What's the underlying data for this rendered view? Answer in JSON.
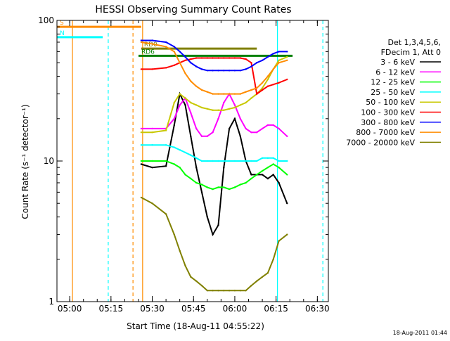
{
  "chart_data": {
    "type": "line",
    "title": "HESSI Observing Summary Count Rates",
    "xlabel": "Start Time (18-Aug-11 04:55:22)",
    "ylabel": "Count Rate (s⁻¹ detector⁻¹)",
    "yscale": "log",
    "ylim": [
      1,
      100
    ],
    "xlim": [
      "04:55:22",
      "06:34:00"
    ],
    "grid": false,
    "legend_position": "right",
    "x_ticks": [
      "05:00",
      "05:15",
      "05:30",
      "05:45",
      "06:00",
      "06:15",
      "06:30"
    ],
    "y_ticks": [
      "1",
      "10",
      "100"
    ],
    "legend_header": [
      "Det 1,3,4,5,6,",
      "FDecim 1, Att 0"
    ],
    "series": [
      {
        "name": "3 - 6 keV",
        "color": "#000000",
        "x": [
          "05:26",
          "05:30",
          "05:35",
          "05:38",
          "05:40",
          "05:42",
          "05:44",
          "05:46",
          "05:48",
          "05:50",
          "05:52",
          "05:54",
          "05:56",
          "05:58",
          "06:00",
          "06:02",
          "06:04",
          "06:06",
          "06:08",
          "06:10",
          "06:12",
          "06:14",
          "06:16",
          "06:19"
        ],
        "values": [
          9.5,
          9.0,
          9.2,
          18,
          30,
          25,
          15,
          9,
          6,
          4,
          3,
          3.5,
          9,
          17,
          20,
          15,
          10,
          8,
          8,
          8,
          7.5,
          8.0,
          7,
          5
        ]
      },
      {
        "name": "6 - 12 keV",
        "color": "#ff00ff",
        "x": [
          "05:26",
          "05:30",
          "05:35",
          "05:38",
          "05:40",
          "05:42",
          "05:44",
          "05:46",
          "05:48",
          "05:50",
          "05:52",
          "05:54",
          "05:56",
          "05:58",
          "06:00",
          "06:02",
          "06:04",
          "06:06",
          "06:08",
          "06:10",
          "06:12",
          "06:14",
          "06:16",
          "06:19"
        ],
        "values": [
          17,
          17,
          17,
          20,
          25,
          28,
          22,
          17,
          15,
          15,
          16,
          20,
          26,
          30,
          25,
          20,
          17,
          16,
          16,
          17,
          18,
          18,
          17,
          15
        ]
      },
      {
        "name": "12 - 25 keV",
        "color": "#00ff00",
        "x": [
          "05:26",
          "05:30",
          "05:35",
          "05:38",
          "05:40",
          "05:42",
          "05:44",
          "05:46",
          "05:48",
          "05:50",
          "05:52",
          "05:54",
          "05:56",
          "05:58",
          "06:00",
          "06:02",
          "06:04",
          "06:06",
          "06:08",
          "06:10",
          "06:12",
          "06:14",
          "06:16",
          "06:19"
        ],
        "values": [
          10,
          10,
          10,
          9.5,
          9,
          8,
          7.5,
          7,
          6.8,
          6.5,
          6.3,
          6.5,
          6.5,
          6.3,
          6.5,
          6.8,
          7,
          7.5,
          8,
          8.5,
          9,
          9.5,
          9,
          8
        ]
      },
      {
        "name": "25 - 50 keV",
        "color": "#00ffff",
        "x": [
          "05:26",
          "05:30",
          "05:35",
          "05:38",
          "05:40",
          "05:42",
          "05:44",
          "05:46",
          "05:48",
          "05:50",
          "05:52",
          "05:54",
          "05:56",
          "05:58",
          "06:00",
          "06:02",
          "06:04",
          "06:06",
          "06:08",
          "06:10",
          "06:12",
          "06:14",
          "06:16",
          "06:19"
        ],
        "values": [
          13,
          13,
          13,
          12.5,
          12,
          11.5,
          11,
          10.5,
          10,
          10,
          10,
          10,
          10,
          10,
          10,
          10,
          10,
          10,
          10,
          10.5,
          10.5,
          10.5,
          10,
          10
        ]
      },
      {
        "name": "50 - 100 keV",
        "color": "#c8c800",
        "x": [
          "05:26",
          "05:30",
          "05:35",
          "05:38",
          "05:40",
          "05:42",
          "05:44",
          "05:46",
          "05:48",
          "05:50",
          "05:52",
          "05:54",
          "05:56",
          "05:58",
          "06:00",
          "06:02",
          "06:04",
          "06:06",
          "06:08",
          "06:10",
          "06:12",
          "06:14",
          "06:16",
          "06:19"
        ],
        "values": [
          16,
          16,
          16.5,
          26,
          30,
          28,
          26,
          25,
          24,
          23.5,
          23,
          23,
          23,
          23.5,
          24,
          25,
          26,
          28,
          30,
          33,
          38,
          45,
          52,
          55
        ]
      },
      {
        "name": "100 - 300 keV",
        "color": "#ff0000",
        "x": [
          "05:26",
          "05:30",
          "05:35",
          "05:38",
          "05:40",
          "05:42",
          "05:44",
          "05:46",
          "05:48",
          "05:50",
          "05:52",
          "05:54",
          "05:56",
          "05:58",
          "06:00",
          "06:02",
          "06:04",
          "06:06",
          "06:08",
          "06:10",
          "06:12",
          "06:14",
          "06:16",
          "06:19"
        ],
        "values": [
          45,
          45,
          46,
          48,
          50,
          52,
          53,
          54,
          54,
          54,
          54,
          54,
          54,
          54,
          54,
          54,
          53,
          50,
          30,
          32,
          34,
          35,
          36,
          38
        ]
      },
      {
        "name": "300 - 800 keV",
        "color": "#0000ff",
        "x": [
          "05:26",
          "05:30",
          "05:35",
          "05:38",
          "05:40",
          "05:42",
          "05:44",
          "05:46",
          "05:48",
          "05:50",
          "05:52",
          "05:54",
          "05:56",
          "05:58",
          "06:00",
          "06:02",
          "06:04",
          "06:06",
          "06:08",
          "06:10",
          "06:12",
          "06:14",
          "06:16",
          "06:19"
        ],
        "values": [
          72,
          72,
          70,
          65,
          60,
          55,
          50,
          47,
          45,
          44,
          44,
          44,
          44,
          44,
          44,
          44,
          45,
          47,
          50,
          52,
          55,
          58,
          60,
          60
        ]
      },
      {
        "name": "800 - 7000 keV",
        "color": "#ff8c00",
        "x": [
          "05:26",
          "05:30",
          "05:35",
          "05:38",
          "05:40",
          "05:42",
          "05:44",
          "05:46",
          "05:48",
          "05:50",
          "05:52",
          "05:54",
          "05:56",
          "05:58",
          "06:00",
          "06:02",
          "06:04",
          "06:06",
          "06:08",
          "06:10",
          "06:12",
          "06:14",
          "06:16",
          "06:19"
        ],
        "values": [
          70,
          68,
          65,
          60,
          50,
          42,
          37,
          34,
          32,
          31,
          30,
          30,
          30,
          30,
          30,
          30,
          31,
          32,
          33,
          36,
          40,
          45,
          50,
          52
        ]
      },
      {
        "name": "7000 - 20000 keV",
        "color": "#808000",
        "x": [
          "05:26",
          "05:30",
          "05:35",
          "05:38",
          "05:40",
          "05:42",
          "05:44",
          "05:46",
          "05:48",
          "05:50",
          "05:52",
          "05:54",
          "05:56",
          "05:58",
          "06:00",
          "06:02",
          "06:04",
          "06:06",
          "06:08",
          "06:10",
          "06:12",
          "06:14",
          "06:16",
          "06:19"
        ],
        "values": [
          5.5,
          5,
          4.2,
          3,
          2.3,
          1.8,
          1.5,
          1.4,
          1.3,
          1.2,
          1.2,
          1.2,
          1.2,
          1.2,
          1.2,
          1.2,
          1.2,
          1.3,
          1.4,
          1.5,
          1.6,
          2,
          2.7,
          3
        ]
      }
    ],
    "annotations": [
      {
        "text": "S",
        "color": "#ff8c00",
        "x_start": "04:55:22",
        "x_end": "05:26:00",
        "level": 90
      },
      {
        "text": "N",
        "color": "#00ffff",
        "x_start": "04:55:22",
        "x_end": "05:12:00",
        "level": 76
      },
      {
        "text": "RD0",
        "color": "#808000",
        "x_start": "05:26:00",
        "x_end": "06:08:00",
        "level": 63
      },
      {
        "text": "RD6",
        "color": "#008000",
        "x_start": "05:25:00",
        "x_end": "06:21:00",
        "level": 56
      }
    ],
    "vertical_markers": [
      {
        "x": "05:01:00",
        "color": "#ff8c00",
        "style": "solid"
      },
      {
        "x": "05:14:00",
        "color": "#00ffff",
        "style": "dashed"
      },
      {
        "x": "05:23:00",
        "color": "#ff8c00",
        "style": "dashed"
      },
      {
        "x": "05:26:30",
        "color": "#ff8c00",
        "style": "solid"
      },
      {
        "x": "06:15:30",
        "color": "#00ffff",
        "style": "solid"
      },
      {
        "x": "06:32:00",
        "color": "#00ffff",
        "style": "dashed"
      }
    ]
  },
  "footer_timestamp": "18-Aug-2011 01:44"
}
